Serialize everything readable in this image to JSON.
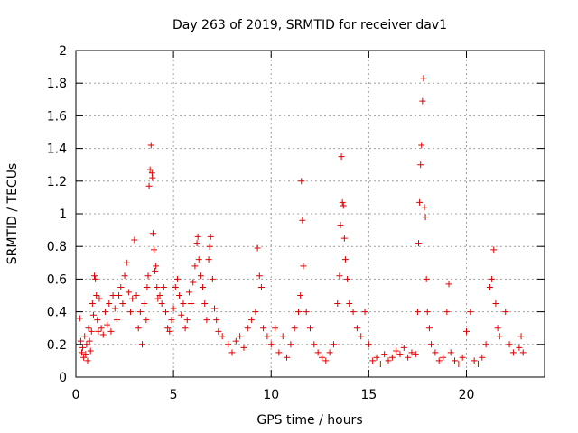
{
  "chart_data": {
    "type": "scatter",
    "title": "Day 263 of 2019, SRMTID for receiver dav1",
    "xlabel": "GPS time / hours",
    "ylabel": "SRMTID / TECUs",
    "xlim": [
      0,
      24
    ],
    "ylim": [
      0,
      2
    ],
    "xticks": [
      0,
      5,
      10,
      15,
      20
    ],
    "yticks": [
      0,
      0.2,
      0.4,
      0.6,
      0.8,
      1,
      1.2,
      1.4,
      1.6,
      1.8,
      2
    ],
    "x_tick_labels": [
      "0",
      "5",
      "10",
      "15",
      "20"
    ],
    "y_tick_labels": [
      "0",
      "0.2",
      "0.4",
      "0.6",
      "0.8",
      "1",
      "1.2",
      "1.4",
      "1.6",
      "1.8",
      "2"
    ],
    "grid": true,
    "marker": "plus",
    "marker_color": "#e00000",
    "series": [
      {
        "name": "SRMTID",
        "points": [
          [
            0.2,
            0.36
          ],
          [
            0.25,
            0.22
          ],
          [
            0.3,
            0.15
          ],
          [
            0.35,
            0.18
          ],
          [
            0.4,
            0.12
          ],
          [
            0.45,
            0.25
          ],
          [
            0.5,
            0.14
          ],
          [
            0.55,
            0.2
          ],
          [
            0.6,
            0.1
          ],
          [
            0.65,
            0.3
          ],
          [
            0.7,
            0.22
          ],
          [
            0.75,
            0.16
          ],
          [
            0.8,
            0.28
          ],
          [
            0.85,
            0.45
          ],
          [
            0.9,
            0.38
          ],
          [
            0.95,
            0.62
          ],
          [
            1.0,
            0.6
          ],
          [
            1.05,
            0.5
          ],
          [
            1.1,
            0.35
          ],
          [
            1.15,
            0.28
          ],
          [
            1.2,
            0.48
          ],
          [
            1.3,
            0.3
          ],
          [
            1.4,
            0.26
          ],
          [
            1.5,
            0.4
          ],
          [
            1.6,
            0.32
          ],
          [
            1.7,
            0.45
          ],
          [
            1.8,
            0.28
          ],
          [
            1.9,
            0.5
          ],
          [
            2.0,
            0.42
          ],
          [
            2.1,
            0.35
          ],
          [
            2.2,
            0.5
          ],
          [
            2.3,
            0.55
          ],
          [
            2.4,
            0.45
          ],
          [
            2.5,
            0.62
          ],
          [
            2.6,
            0.7
          ],
          [
            2.7,
            0.52
          ],
          [
            2.8,
            0.4
          ],
          [
            2.9,
            0.48
          ],
          [
            3.0,
            0.84
          ],
          [
            3.1,
            0.5
          ],
          [
            3.2,
            0.3
          ],
          [
            3.3,
            0.4
          ],
          [
            3.4,
            0.2
          ],
          [
            3.5,
            0.45
          ],
          [
            3.6,
            0.35
          ],
          [
            3.65,
            0.55
          ],
          [
            3.7,
            0.62
          ],
          [
            3.75,
            1.17
          ],
          [
            3.8,
            1.27
          ],
          [
            3.85,
            1.42
          ],
          [
            3.9,
            1.25
          ],
          [
            3.92,
            1.22
          ],
          [
            3.95,
            0.88
          ],
          [
            4.0,
            0.78
          ],
          [
            4.05,
            0.65
          ],
          [
            4.1,
            0.68
          ],
          [
            4.15,
            0.55
          ],
          [
            4.2,
            0.48
          ],
          [
            4.3,
            0.5
          ],
          [
            4.4,
            0.45
          ],
          [
            4.5,
            0.55
          ],
          [
            4.6,
            0.4
          ],
          [
            4.7,
            0.3
          ],
          [
            4.8,
            0.28
          ],
          [
            4.9,
            0.35
          ],
          [
            5.0,
            0.42
          ],
          [
            5.1,
            0.55
          ],
          [
            5.2,
            0.6
          ],
          [
            5.3,
            0.5
          ],
          [
            5.4,
            0.38
          ],
          [
            5.5,
            0.45
          ],
          [
            5.6,
            0.3
          ],
          [
            5.7,
            0.35
          ],
          [
            5.8,
            0.52
          ],
          [
            5.9,
            0.45
          ],
          [
            6.0,
            0.58
          ],
          [
            6.1,
            0.68
          ],
          [
            6.2,
            0.82
          ],
          [
            6.25,
            0.86
          ],
          [
            6.3,
            0.72
          ],
          [
            6.4,
            0.62
          ],
          [
            6.5,
            0.55
          ],
          [
            6.6,
            0.45
          ],
          [
            6.7,
            0.35
          ],
          [
            6.8,
            0.72
          ],
          [
            6.85,
            0.8
          ],
          [
            6.9,
            0.86
          ],
          [
            7.0,
            0.6
          ],
          [
            7.1,
            0.42
          ],
          [
            7.2,
            0.35
          ],
          [
            7.3,
            0.28
          ],
          [
            7.5,
            0.25
          ],
          [
            7.8,
            0.2
          ],
          [
            8.0,
            0.15
          ],
          [
            8.2,
            0.22
          ],
          [
            8.4,
            0.25
          ],
          [
            8.6,
            0.18
          ],
          [
            8.8,
            0.3
          ],
          [
            9.0,
            0.35
          ],
          [
            9.2,
            0.4
          ],
          [
            9.3,
            0.79
          ],
          [
            9.4,
            0.62
          ],
          [
            9.5,
            0.55
          ],
          [
            9.6,
            0.3
          ],
          [
            9.8,
            0.25
          ],
          [
            10.0,
            0.2
          ],
          [
            10.2,
            0.3
          ],
          [
            10.4,
            0.15
          ],
          [
            10.6,
            0.25
          ],
          [
            10.8,
            0.12
          ],
          [
            11.0,
            0.2
          ],
          [
            11.2,
            0.3
          ],
          [
            11.4,
            0.4
          ],
          [
            11.5,
            0.5
          ],
          [
            11.55,
            1.2
          ],
          [
            11.6,
            0.96
          ],
          [
            11.65,
            0.68
          ],
          [
            11.8,
            0.4
          ],
          [
            12.0,
            0.3
          ],
          [
            12.2,
            0.2
          ],
          [
            12.4,
            0.15
          ],
          [
            12.6,
            0.12
          ],
          [
            12.8,
            0.1
          ],
          [
            13.0,
            0.15
          ],
          [
            13.2,
            0.2
          ],
          [
            13.4,
            0.45
          ],
          [
            13.5,
            0.62
          ],
          [
            13.55,
            0.93
          ],
          [
            13.6,
            1.35
          ],
          [
            13.65,
            1.07
          ],
          [
            13.7,
            1.05
          ],
          [
            13.75,
            0.85
          ],
          [
            13.8,
            0.72
          ],
          [
            13.9,
            0.6
          ],
          [
            14.0,
            0.45
          ],
          [
            14.2,
            0.4
          ],
          [
            14.4,
            0.3
          ],
          [
            14.6,
            0.25
          ],
          [
            14.8,
            0.4
          ],
          [
            15.0,
            0.2
          ],
          [
            15.2,
            0.1
          ],
          [
            15.4,
            0.12
          ],
          [
            15.6,
            0.08
          ],
          [
            15.8,
            0.14
          ],
          [
            16.0,
            0.1
          ],
          [
            16.2,
            0.12
          ],
          [
            16.4,
            0.16
          ],
          [
            16.6,
            0.14
          ],
          [
            16.8,
            0.18
          ],
          [
            17.0,
            0.12
          ],
          [
            17.2,
            0.15
          ],
          [
            17.4,
            0.14
          ],
          [
            17.5,
            0.4
          ],
          [
            17.55,
            0.82
          ],
          [
            17.6,
            1.07
          ],
          [
            17.65,
            1.3
          ],
          [
            17.7,
            1.42
          ],
          [
            17.75,
            1.69
          ],
          [
            17.8,
            1.83
          ],
          [
            17.85,
            1.04
          ],
          [
            17.9,
            0.98
          ],
          [
            17.95,
            0.6
          ],
          [
            18.0,
            0.4
          ],
          [
            18.1,
            0.3
          ],
          [
            18.2,
            0.2
          ],
          [
            18.4,
            0.15
          ],
          [
            18.6,
            0.1
          ],
          [
            18.8,
            0.12
          ],
          [
            19.0,
            0.4
          ],
          [
            19.1,
            0.57
          ],
          [
            19.2,
            0.15
          ],
          [
            19.4,
            0.1
          ],
          [
            19.6,
            0.08
          ],
          [
            19.8,
            0.12
          ],
          [
            20.0,
            0.28
          ],
          [
            20.2,
            0.4
          ],
          [
            20.4,
            0.1
          ],
          [
            20.6,
            0.08
          ],
          [
            20.8,
            0.12
          ],
          [
            21.0,
            0.2
          ],
          [
            21.2,
            0.55
          ],
          [
            21.3,
            0.6
          ],
          [
            21.4,
            0.78
          ],
          [
            21.5,
            0.45
          ],
          [
            21.6,
            0.3
          ],
          [
            21.7,
            0.25
          ],
          [
            22.0,
            0.4
          ],
          [
            22.2,
            0.2
          ],
          [
            22.4,
            0.15
          ],
          [
            22.7,
            0.18
          ],
          [
            22.8,
            0.25
          ],
          [
            22.9,
            0.15
          ]
        ]
      }
    ]
  }
}
